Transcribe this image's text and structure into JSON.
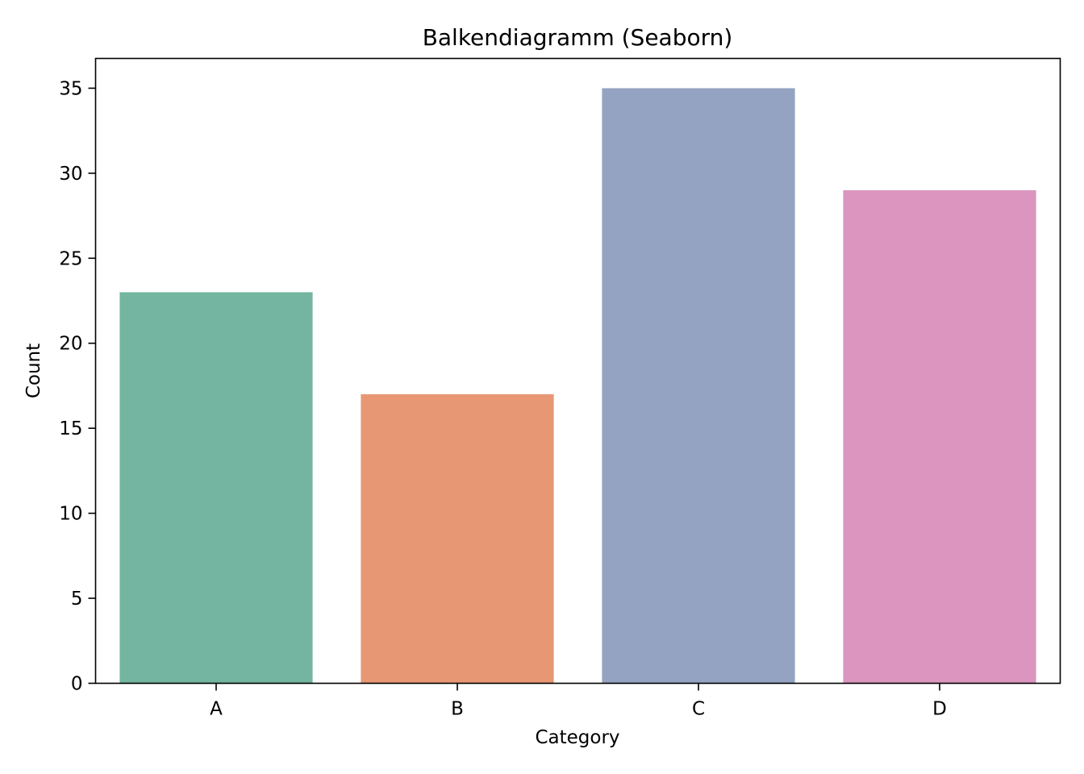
{
  "chart_data": {
    "type": "bar",
    "title": "Balkendiagramm (Seaborn)",
    "xlabel": "Category",
    "ylabel": "Count",
    "categories": [
      "A",
      "B",
      "C",
      "D"
    ],
    "values": [
      23,
      17,
      35,
      29
    ],
    "colors": [
      "#73b5a0",
      "#e89774",
      "#95a3c2",
      "#db95bf"
    ],
    "ylim": [
      0,
      36.75
    ],
    "yticks": [
      0,
      5,
      10,
      15,
      20,
      25,
      30,
      35
    ],
    "grid": false,
    "legend": "none"
  }
}
